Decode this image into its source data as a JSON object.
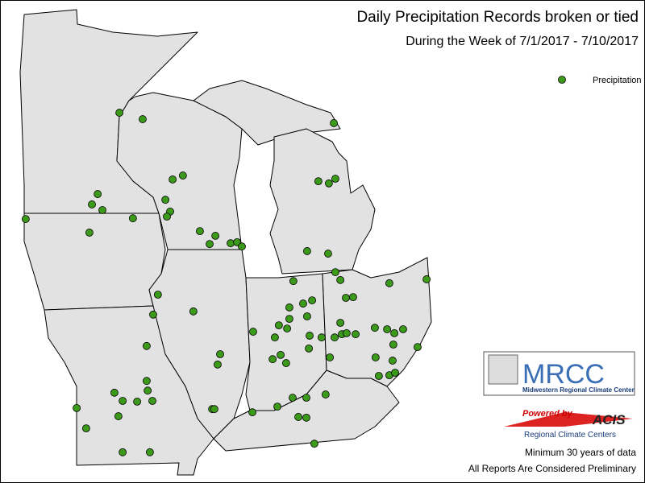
{
  "header": {
    "title": "Daily Precipitation Records broken or tied",
    "subtitle": "During the Week of 7/1/2017 - 7/10/2017"
  },
  "legend": {
    "label": "Precipitation",
    "color": "#3c9a1a"
  },
  "points": [
    {
      "lon": -92.69,
      "lat": 46.32
    },
    {
      "lon": -91.76,
      "lat": 46.14
    },
    {
      "lon": -93.56,
      "lat": 44.04
    },
    {
      "lon": -93.79,
      "lat": 43.75
    },
    {
      "lon": -93.37,
      "lat": 43.59
    },
    {
      "lon": -96.44,
      "lat": 43.34
    },
    {
      "lon": -93.89,
      "lat": 42.96
    },
    {
      "lon": -92.15,
      "lat": 43.36
    },
    {
      "lon": -90.56,
      "lat": 44.45
    },
    {
      "lon": -90.15,
      "lat": 44.56
    },
    {
      "lon": -90.85,
      "lat": 43.88
    },
    {
      "lon": -90.66,
      "lat": 43.55
    },
    {
      "lon": -90.79,
      "lat": 43.41
    },
    {
      "lon": -89.47,
      "lat": 43.0
    },
    {
      "lon": -88.85,
      "lat": 42.87
    },
    {
      "lon": -89.08,
      "lat": 42.64
    },
    {
      "lon": -88.24,
      "lat": 42.66
    },
    {
      "lon": -87.98,
      "lat": 42.69
    },
    {
      "lon": -87.79,
      "lat": 42.57
    },
    {
      "lon": -84.11,
      "lat": 46.03
    },
    {
      "lon": -84.73,
      "lat": 44.4
    },
    {
      "lon": -84.05,
      "lat": 44.47
    },
    {
      "lon": -84.31,
      "lat": 44.34
    },
    {
      "lon": -85.18,
      "lat": 42.44
    },
    {
      "lon": -84.34,
      "lat": 42.37
    },
    {
      "lon": -84.05,
      "lat": 41.85
    },
    {
      "lon": -83.85,
      "lat": 41.63
    },
    {
      "lon": -81.89,
      "lat": 41.54
    },
    {
      "lon": -80.4,
      "lat": 41.65
    },
    {
      "lon": -85.73,
      "lat": 41.6
    },
    {
      "lon": -91.15,
      "lat": 41.22
    },
    {
      "lon": -91.34,
      "lat": 40.66
    },
    {
      "lon": -89.73,
      "lat": 40.75
    },
    {
      "lon": -85.89,
      "lat": 40.86
    },
    {
      "lon": -85.34,
      "lat": 40.97
    },
    {
      "lon": -84.98,
      "lat": 41.06
    },
    {
      "lon": -83.63,
      "lat": 41.13
    },
    {
      "lon": -83.34,
      "lat": 41.15
    },
    {
      "lon": -83.85,
      "lat": 40.43
    },
    {
      "lon": -83.79,
      "lat": 40.11
    },
    {
      "lon": -83.6,
      "lat": 40.14
    },
    {
      "lon": -84.08,
      "lat": 40.02
    },
    {
      "lon": -83.24,
      "lat": 40.11
    },
    {
      "lon": -82.47,
      "lat": 40.29
    },
    {
      "lon": -81.98,
      "lat": 40.25
    },
    {
      "lon": -81.34,
      "lat": 40.25
    },
    {
      "lon": -81.69,
      "lat": 40.14
    },
    {
      "lon": -81.73,
      "lat": 39.82
    },
    {
      "lon": -80.76,
      "lat": 39.75
    },
    {
      "lon": -85.89,
      "lat": 40.54
    },
    {
      "lon": -85.18,
      "lat": 40.61
    },
    {
      "lon": -86.31,
      "lat": 40.36
    },
    {
      "lon": -85.98,
      "lat": 40.27
    },
    {
      "lon": -87.34,
      "lat": 40.18
    },
    {
      "lon": -86.47,
      "lat": 40.02
    },
    {
      "lon": -85.08,
      "lat": 40.07
    },
    {
      "lon": -84.6,
      "lat": 40.02
    },
    {
      "lon": -85.11,
      "lat": 39.71
    },
    {
      "lon": -86.24,
      "lat": 39.53
    },
    {
      "lon": -86.56,
      "lat": 39.41
    },
    {
      "lon": -86.02,
      "lat": 39.3
    },
    {
      "lon": -84.27,
      "lat": 39.46
    },
    {
      "lon": -82.44,
      "lat": 39.46
    },
    {
      "lon": -81.76,
      "lat": 39.37
    },
    {
      "lon": -91.6,
      "lat": 39.78
    },
    {
      "lon": -88.66,
      "lat": 39.55
    },
    {
      "lon": -88.76,
      "lat": 39.26
    },
    {
      "lon": -91.6,
      "lat": 38.8
    },
    {
      "lon": -92.89,
      "lat": 38.47
    },
    {
      "lon": -91.56,
      "lat": 38.53
    },
    {
      "lon": -92.56,
      "lat": 38.24
    },
    {
      "lon": -91.98,
      "lat": 38.22
    },
    {
      "lon": -91.37,
      "lat": 38.24
    },
    {
      "lon": -94.4,
      "lat": 38.04
    },
    {
      "lon": -92.73,
      "lat": 37.81
    },
    {
      "lon": -94.02,
      "lat": 37.47
    },
    {
      "lon": -88.98,
      "lat": 38.01
    },
    {
      "lon": -88.89,
      "lat": 38.01
    },
    {
      "lon": -87.37,
      "lat": 37.92
    },
    {
      "lon": -86.37,
      "lat": 38.08
    },
    {
      "lon": -85.76,
      "lat": 38.33
    },
    {
      "lon": -85.21,
      "lat": 38.33
    },
    {
      "lon": -84.44,
      "lat": 38.42
    },
    {
      "lon": -85.53,
      "lat": 37.79
    },
    {
      "lon": -85.21,
      "lat": 37.77
    },
    {
      "lon": -82.31,
      "lat": 38.94
    },
    {
      "lon": -81.89,
      "lat": 38.96
    },
    {
      "lon": -81.66,
      "lat": 39.03
    },
    {
      "lon": -92.56,
      "lat": 36.8
    },
    {
      "lon": -91.47,
      "lat": 36.8
    },
    {
      "lon": -84.89,
      "lat": 37.04
    }
  ],
  "logos": {
    "mrcc": "MRCC",
    "mrcc_name": "Midwestern Regional Climate Center",
    "powered_by": "Powered by",
    "acis": "ACIS",
    "acis_name": "Regional Climate Centers"
  },
  "footnotes": [
    "Minimum 30 years of data",
    "All Reports Are Considered Preliminary"
  ]
}
